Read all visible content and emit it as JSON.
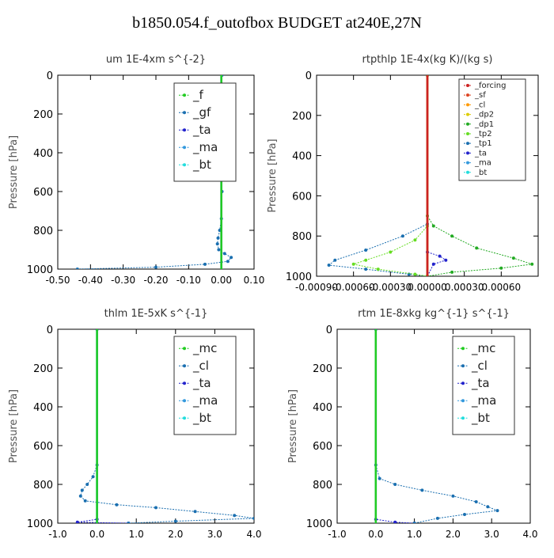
{
  "figure": {
    "title": "b1850.054.f_outofbox  BUDGET at240E,27N"
  },
  "chart_data": [
    {
      "type": "line",
      "title": "um  1E-4xm s^{-2}",
      "ylabel": "Pressure [hPa]",
      "xlim": [
        -0.5,
        0.1
      ],
      "ylim": [
        1000,
        0
      ],
      "xticks": [
        -0.5,
        -0.4,
        -0.3,
        -0.2,
        -0.1,
        0.0,
        0.1
      ],
      "xtick_labels": [
        "-0.50",
        "-0.40",
        "-0.30",
        "-0.20",
        "-0.10",
        "0.00",
        "0.10"
      ],
      "yticks": [
        0,
        200,
        400,
        600,
        800,
        1000
      ],
      "ytick_labels": [
        "0",
        "200",
        "400",
        "600",
        "800",
        "1000"
      ],
      "legend_position": "top-right",
      "series": [
        {
          "name": "_f",
          "color": "#22cc22",
          "values": [
            [
              0,
              0
            ],
            [
              0,
              1000
            ]
          ]
        },
        {
          "name": "_gf",
          "color": "#1a6fb0",
          "values": [
            [
              0.002,
              0
            ],
            [
              0.002,
              600
            ],
            [
              0.0,
              740
            ],
            [
              -0.005,
              800
            ],
            [
              -0.01,
              840
            ],
            [
              -0.012,
              870
            ],
            [
              -0.008,
              900
            ],
            [
              0.01,
              920
            ],
            [
              0.03,
              940
            ],
            [
              0.02,
              960
            ],
            [
              -0.05,
              975
            ],
            [
              -0.2,
              990
            ],
            [
              -0.44,
              1000
            ]
          ]
        },
        {
          "name": "_ta",
          "color": "#2222cc",
          "values": [
            [
              0,
              0
            ],
            [
              0,
              1000
            ]
          ]
        },
        {
          "name": "_ma",
          "color": "#3399dd",
          "values": [
            [
              0,
              0
            ],
            [
              0,
              1000
            ]
          ]
        },
        {
          "name": "_bt",
          "color": "#22dddd",
          "values": [
            [
              0,
              0
            ],
            [
              0,
              1000
            ]
          ]
        }
      ]
    },
    {
      "type": "line",
      "title": "rtpthlp  1E-4x(kg K)/(kg s)",
      "ylabel": "Pressure [hPa]",
      "xlim": [
        -0.0009,
        0.0009
      ],
      "ylim": [
        1000,
        0
      ],
      "xticks": [
        -0.0009,
        -0.0006,
        -0.0003,
        0.0,
        0.0003,
        0.0006
      ],
      "xtick_labels": [
        "-0.00090",
        "-0.00060",
        "-0.00030",
        "0.00000",
        "0.00030",
        "0.00060"
      ],
      "yticks": [
        0,
        200,
        400,
        600,
        800,
        1000
      ],
      "ytick_labels": [
        "0",
        "200",
        "400",
        "600",
        "800",
        "1000"
      ],
      "legend_position": "top-right",
      "series": [
        {
          "name": "_forcing",
          "color": "#cc2222",
          "values": [
            [
              0,
              0
            ],
            [
              0,
              1000
            ]
          ]
        },
        {
          "name": "_sf",
          "color": "#dd4422",
          "values": [
            [
              0,
              0
            ],
            [
              0,
              1000
            ]
          ]
        },
        {
          "name": "_cl",
          "color": "#ff9900",
          "values": [
            [
              0,
              0
            ],
            [
              0,
              1000
            ]
          ]
        },
        {
          "name": "_dp2",
          "color": "#ddcc00",
          "values": [
            [
              0,
              0
            ],
            [
              0,
              1000
            ]
          ]
        },
        {
          "name": "_dp1",
          "color": "#22aa22",
          "values": [
            [
              0,
              0
            ],
            [
              0,
              700
            ],
            [
              5e-05,
              750
            ],
            [
              0.0002,
              800
            ],
            [
              0.0004,
              860
            ],
            [
              0.0007,
              910
            ],
            [
              0.00085,
              940
            ],
            [
              0.0006,
              960
            ],
            [
              0.0002,
              980
            ],
            [
              0,
              1000
            ]
          ]
        },
        {
          "name": "_tp2",
          "color": "#66dd22",
          "values": [
            [
              0,
              0
            ],
            [
              0,
              750
            ],
            [
              -0.0001,
              820
            ],
            [
              -0.0003,
              880
            ],
            [
              -0.0005,
              920
            ],
            [
              -0.0006,
              940
            ],
            [
              -0.0004,
              965
            ],
            [
              -0.0001,
              990
            ],
            [
              0,
              1000
            ]
          ]
        },
        {
          "name": "_tp1",
          "color": "#1a6fb0",
          "values": [
            [
              0,
              0
            ],
            [
              0,
              740
            ],
            [
              -0.0002,
              800
            ],
            [
              -0.0005,
              870
            ],
            [
              -0.00075,
              920
            ],
            [
              -0.0008,
              945
            ],
            [
              -0.0005,
              965
            ],
            [
              -0.00015,
              990
            ],
            [
              0,
              1000
            ]
          ]
        },
        {
          "name": "_ta",
          "color": "#2222cc",
          "values": [
            [
              0,
              0
            ],
            [
              0,
              880
            ],
            [
              0.0001,
              900
            ],
            [
              0.00015,
              920
            ],
            [
              5e-05,
              940
            ],
            [
              0,
              1000
            ]
          ]
        },
        {
          "name": "_ma",
          "color": "#3399dd",
          "values": [
            [
              0,
              0
            ],
            [
              0,
              1000
            ]
          ]
        },
        {
          "name": "_bt",
          "color": "#22dddd",
          "values": [
            [
              0,
              0
            ],
            [
              0,
              1000
            ]
          ]
        }
      ]
    },
    {
      "type": "line",
      "title": "thlm  1E-5xK s^{-1}",
      "ylabel": "Pressure [hPa]",
      "xlim": [
        -1.0,
        4.0
      ],
      "ylim": [
        1000,
        0
      ],
      "xticks": [
        -1.0,
        0.0,
        1.0,
        2.0,
        3.0,
        4.0
      ],
      "xtick_labels": [
        "-1.0",
        "0.0",
        "1.0",
        "2.0",
        "3.0",
        "4.0"
      ],
      "yticks": [
        0,
        200,
        400,
        600,
        800,
        1000
      ],
      "ytick_labels": [
        "0",
        "200",
        "400",
        "600",
        "800",
        "1000"
      ],
      "legend_position": "top-right",
      "series": [
        {
          "name": "_mc",
          "color": "#22cc22",
          "values": [
            [
              0,
              0
            ],
            [
              0,
              1000
            ]
          ]
        },
        {
          "name": "_cl",
          "color": "#1a6fb0",
          "values": [
            [
              0,
              0
            ],
            [
              0,
              700
            ],
            [
              -0.1,
              760
            ],
            [
              -0.25,
              800
            ],
            [
              -0.38,
              830
            ],
            [
              -0.42,
              860
            ],
            [
              -0.3,
              885
            ],
            [
              0.5,
              905
            ],
            [
              1.5,
              920
            ],
            [
              2.5,
              940
            ],
            [
              3.5,
              960
            ],
            [
              4.0,
              975
            ],
            [
              2.0,
              990
            ],
            [
              0.8,
              1000
            ]
          ]
        },
        {
          "name": "_ta",
          "color": "#2222cc",
          "values": [
            [
              0,
              0
            ],
            [
              0,
              980
            ],
            [
              -0.5,
              995
            ],
            [
              0.8,
              1000
            ]
          ]
        },
        {
          "name": "_ma",
          "color": "#3399dd",
          "values": [
            [
              0,
              0
            ],
            [
              0,
              1000
            ]
          ]
        },
        {
          "name": "_bt",
          "color": "#22dddd",
          "values": [
            [
              0,
              0
            ],
            [
              0,
              1000
            ]
          ]
        }
      ]
    },
    {
      "type": "line",
      "title": "rtm  1E-8xkg kg^{-1} s^{-1}",
      "ylabel": "Pressure [hPa]",
      "xlim": [
        -1.0,
        4.0
      ],
      "ylim": [
        1000,
        0
      ],
      "xticks": [
        -1.0,
        0.0,
        1.0,
        2.0,
        3.0,
        4.0
      ],
      "xtick_labels": [
        "-1.0",
        "0.0",
        "1.0",
        "2.0",
        "3.0",
        "4.0"
      ],
      "yticks": [
        0,
        200,
        400,
        600,
        800,
        1000
      ],
      "ytick_labels": [
        "0",
        "200",
        "400",
        "600",
        "800",
        "1000"
      ],
      "legend_position": "top-right",
      "series": [
        {
          "name": "_mc",
          "color": "#22cc22",
          "values": [
            [
              0,
              0
            ],
            [
              0,
              1000
            ]
          ]
        },
        {
          "name": "_cl",
          "color": "#1a6fb0",
          "values": [
            [
              0,
              0
            ],
            [
              0,
              700
            ],
            [
              0.1,
              770
            ],
            [
              0.5,
              800
            ],
            [
              1.2,
              830
            ],
            [
              2.0,
              860
            ],
            [
              2.6,
              890
            ],
            [
              2.9,
              915
            ],
            [
              3.15,
              935
            ],
            [
              2.3,
              955
            ],
            [
              1.6,
              975
            ],
            [
              1.0,
              1000
            ]
          ]
        },
        {
          "name": "_ta",
          "color": "#2222cc",
          "values": [
            [
              0,
              0
            ],
            [
              0,
              980
            ],
            [
              0.5,
              995
            ],
            [
              1.0,
              1000
            ]
          ]
        },
        {
          "name": "_ma",
          "color": "#3399dd",
          "values": [
            [
              0,
              0
            ],
            [
              0,
              1000
            ]
          ]
        },
        {
          "name": "_bt",
          "color": "#22dddd",
          "values": [
            [
              0,
              0
            ],
            [
              0,
              1000
            ]
          ]
        }
      ]
    }
  ]
}
